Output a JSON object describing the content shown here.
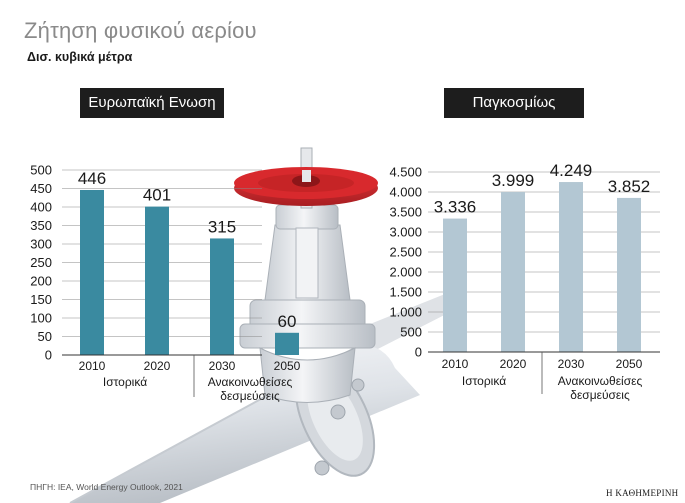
{
  "header": {
    "title": "Ζήτηση φυσικού αερίου",
    "subtitle": "Δισ. κυβικά μέτρα"
  },
  "colors": {
    "europe_bar": "#3a8aa0",
    "world_bar": "#b3c7d3",
    "valve_wheel": "#d32a2e",
    "label_box": "#1d1d1d"
  },
  "chart_data": [
    {
      "type": "bar",
      "title": "Ευρωπαϊκή Ενωση",
      "categories": [
        "2010",
        "2020",
        "2030",
        "2050"
      ],
      "values": [
        446,
        401,
        315,
        60
      ],
      "value_labels": [
        "446",
        "401",
        "315",
        "60"
      ],
      "yticks": [
        0,
        50,
        100,
        150,
        200,
        250,
        300,
        350,
        400,
        450,
        500
      ],
      "ytick_labels": [
        "0",
        "50",
        "100",
        "150",
        "200",
        "250",
        "300",
        "350",
        "400",
        "450",
        "500"
      ],
      "ylim": [
        0,
        500
      ],
      "groups": [
        {
          "label": "Ιστορικά",
          "categories": [
            "2010",
            "2020"
          ]
        },
        {
          "label_lines": [
            "Ανακοινωθείσες",
            "δεσμεύσεις"
          ],
          "categories": [
            "2030",
            "2050"
          ]
        }
      ]
    },
    {
      "type": "bar",
      "title": "Παγκοσμίως",
      "categories": [
        "2010",
        "2020",
        "2030",
        "2050"
      ],
      "values": [
        3336,
        3999,
        4249,
        3852
      ],
      "value_labels": [
        "3.336",
        "3.999",
        "4.249",
        "3.852"
      ],
      "yticks": [
        0,
        500,
        1000,
        1500,
        2000,
        2500,
        3000,
        3500,
        4000,
        4500
      ],
      "ytick_labels": [
        "0",
        "500",
        "1.000",
        "1.500",
        "2.000",
        "2.500",
        "3.000",
        "3.500",
        "4.000",
        "4.500"
      ],
      "ylim": [
        0,
        4500
      ],
      "groups": [
        {
          "label": "Ιστορικά",
          "categories": [
            "2010",
            "2020"
          ]
        },
        {
          "label_lines": [
            "Ανακοινωθείσες",
            "δεσμεύσεις"
          ],
          "categories": [
            "2030",
            "2050"
          ]
        }
      ]
    }
  ],
  "footer": {
    "source": "ΠΗΓΗ: IEA, World Energy Outlook, 2021",
    "publisher": "Η ΚΑΘΗΜΕΡΙΝΗ"
  }
}
